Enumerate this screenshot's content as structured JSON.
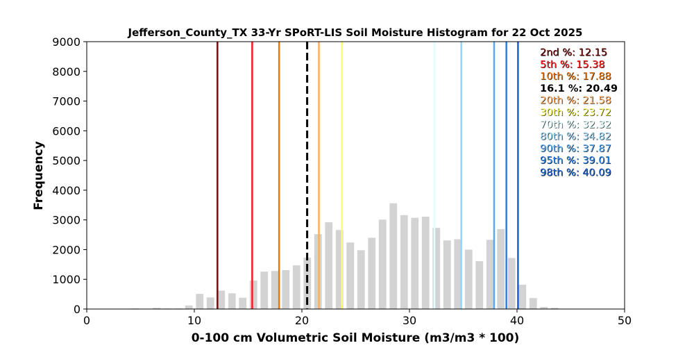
{
  "chart_data": {
    "type": "bar",
    "title": "Jefferson_County_TX 33-Yr SPoRT-LIS Soil Moisture Histogram for 22 Oct 2025",
    "xlabel": "0-100 cm Volumetric Soil Moisture (m3/m3 * 100)",
    "ylabel": "Frequency",
    "xlim": [
      0,
      50
    ],
    "ylim": [
      0,
      9000
    ],
    "xticks": [
      "0",
      "10",
      "20",
      "30",
      "40",
      "50"
    ],
    "yticks": [
      "0",
      "1000",
      "2000",
      "3000",
      "4000",
      "5000",
      "6000",
      "7000",
      "8000",
      "9000"
    ],
    "bar_color": "#d3d3d3",
    "x": [
      4.5,
      6.5,
      7.5,
      8.5,
      9.5,
      10.5,
      11.5,
      12.5,
      13.5,
      14.5,
      15.5,
      16.5,
      17.5,
      18.5,
      19.5,
      20.5,
      21.5,
      22.5,
      23.5,
      24.5,
      25.5,
      26.5,
      27.5,
      28.5,
      29.5,
      30.5,
      31.5,
      32.5,
      33.5,
      34.5,
      35.5,
      36.5,
      37.5,
      38.5,
      39.5,
      40.5,
      41.5,
      42.5,
      43.5
    ],
    "values": [
      20,
      40,
      20,
      20,
      120,
      510,
      390,
      620,
      530,
      380,
      960,
      1260,
      1280,
      1310,
      1470,
      1730,
      2520,
      2920,
      2660,
      2240,
      1980,
      2400,
      3010,
      3560,
      3160,
      3070,
      3110,
      2730,
      2310,
      2350,
      2000,
      1610,
      2330,
      2690,
      1720,
      820,
      370,
      70,
      40
    ],
    "percentile_lines": [
      {
        "label": "2nd %: 12.15",
        "value": 12.15,
        "color": "#6b0f0f",
        "style": "solid"
      },
      {
        "label": "5th %: 15.38",
        "value": 15.38,
        "color": "#ff1a1a",
        "style": "solid"
      },
      {
        "label": "10th %: 17.88",
        "value": 17.88,
        "color": "#e8780f",
        "style": "solid"
      },
      {
        "label": "16.1 %: 20.49",
        "value": 20.49,
        "color": "#000000",
        "style": "dashed"
      },
      {
        "label": "20th %: 21.58",
        "value": 21.58,
        "color": "#ffad66",
        "style": "solid"
      },
      {
        "label": "30th %: 23.72",
        "value": 23.72,
        "color": "#ffff66",
        "style": "solid"
      },
      {
        "label": "70th %: 32.32",
        "value": 32.32,
        "color": "#e0ffff",
        "style": "solid"
      },
      {
        "label": "80th %: 34.82",
        "value": 34.82,
        "color": "#9ad4f5",
        "style": "solid"
      },
      {
        "label": "90th %: 37.87",
        "value": 37.87,
        "color": "#5aa8f0",
        "style": "solid"
      },
      {
        "label": "95th %: 39.01",
        "value": 39.01,
        "color": "#2a7fe3",
        "style": "solid"
      },
      {
        "label": "98th %: 40.09",
        "value": 40.09,
        "color": "#1a60c8",
        "style": "solid"
      }
    ],
    "legend_placement": "top-right",
    "grid": false
  }
}
